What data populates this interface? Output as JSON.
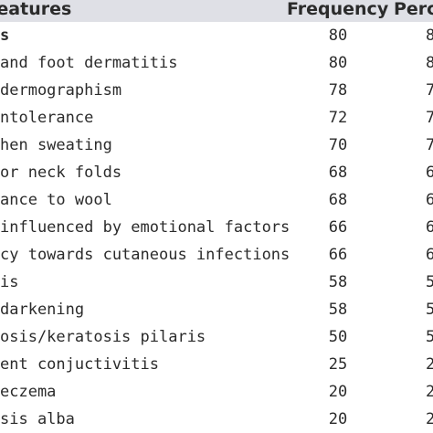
{
  "table": {
    "headers": {
      "feature": "ating features",
      "frequency": "Frequency",
      "percent": "Perce"
    },
    "rows": [
      {
        "feature": "s",
        "frequency": "80",
        "percent": "8"
      },
      {
        "feature": "and foot dermatitis",
        "frequency": "80",
        "percent": "8"
      },
      {
        "feature": "dermographism",
        "frequency": "78",
        "percent": "7"
      },
      {
        "feature": "ntolerance",
        "frequency": "72",
        "percent": "7"
      },
      {
        "feature": "hen sweating",
        "frequency": "70",
        "percent": "7"
      },
      {
        "feature": "or neck folds",
        "frequency": "68",
        "percent": "6"
      },
      {
        "feature": "ance to wool",
        "frequency": "68",
        "percent": "6"
      },
      {
        "feature": " influenced by emotional factors",
        "frequency": "66",
        "percent": "6"
      },
      {
        "feature": "cy towards cutaneous infections",
        "frequency": "66",
        "percent": "6"
      },
      {
        "feature": "is",
        "frequency": "58",
        "percent": "5"
      },
      {
        "feature": " darkening",
        "frequency": "58",
        "percent": "5"
      },
      {
        "feature": "osis/keratosis pilaris",
        "frequency": "50",
        "percent": "5"
      },
      {
        "feature": "ent conjuctivitis",
        "frequency": "25",
        "percent": "2"
      },
      {
        "feature": " eczema",
        "frequency": "20",
        "percent": "2"
      },
      {
        "feature": "sis alba",
        "frequency": "20",
        "percent": "2"
      }
    ]
  }
}
